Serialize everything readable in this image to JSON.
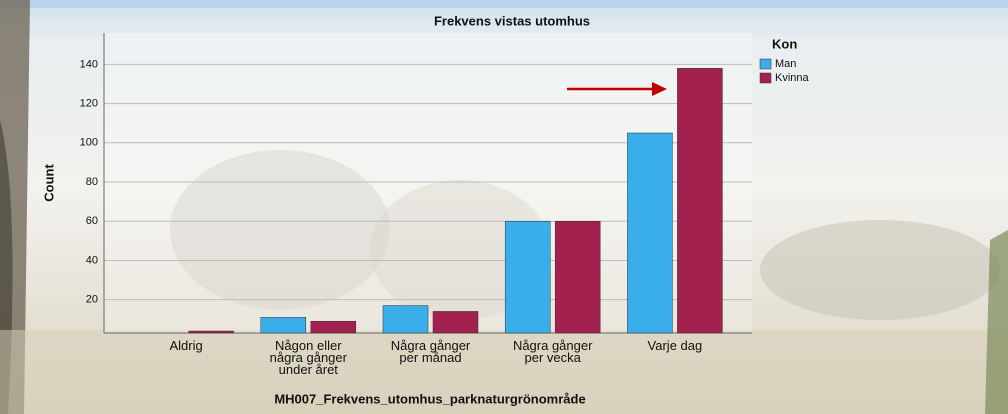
{
  "chart_data": {
    "type": "bar",
    "title": "Frekvens vistas utomhus",
    "y_label": "Count",
    "x_label": "MH007_Frekvens_utomhus_parknaturgrönområde",
    "legend_title": "Kon",
    "categories": [
      "Aldrig",
      "Någon eller\nnågra gånger\nunder året",
      "Några gånger\nper månad",
      "Några gånger\nper vecka",
      "Varje dag"
    ],
    "series": [
      {
        "name": "Man",
        "color": "#3aaeea",
        "values": [
          null,
          11,
          17,
          60,
          105
        ]
      },
      {
        "name": "Kvinna",
        "color": "#a3214f",
        "values": [
          4,
          9,
          14,
          60,
          138
        ]
      }
    ],
    "ylim": [
      3,
      156
    ],
    "yticks": [
      20,
      40,
      60,
      80,
      100,
      120,
      140
    ],
    "grid": true
  }
}
